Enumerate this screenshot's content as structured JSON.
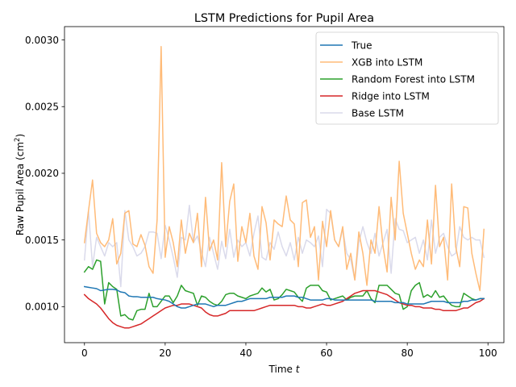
{
  "chart_data": {
    "type": "line",
    "title": "LSTM Predictions for Pupil Area",
    "xlabel": "Time ",
    "xlabel_var": "t",
    "ylabel": "Raw Pupil Area (cm",
    "ylabel_sup": "2",
    "ylabel_close": ")",
    "xlim": [
      -4.95,
      103.95
    ],
    "ylim": [
      0.00073,
      0.0031
    ],
    "x_ticks": [
      0,
      20,
      40,
      60,
      80,
      100
    ],
    "x_tick_labels": [
      "0",
      "20",
      "40",
      "60",
      "80",
      "100"
    ],
    "y_ticks": [
      0.001,
      0.0015,
      0.002,
      0.0025,
      0.003
    ],
    "y_tick_labels": [
      "0.0010",
      "0.0015",
      "0.0020",
      "0.0025",
      "0.0030"
    ],
    "grid": false,
    "legend_position": "upper-right",
    "x": [
      0,
      1,
      2,
      3,
      4,
      5,
      6,
      7,
      8,
      9,
      10,
      11,
      12,
      13,
      14,
      15,
      16,
      17,
      18,
      19,
      20,
      21,
      22,
      23,
      24,
      25,
      26,
      27,
      28,
      29,
      30,
      31,
      32,
      33,
      34,
      35,
      36,
      37,
      38,
      39,
      40,
      41,
      42,
      43,
      44,
      45,
      46,
      47,
      48,
      49,
      50,
      51,
      52,
      53,
      54,
      55,
      56,
      57,
      58,
      59,
      60,
      61,
      62,
      63,
      64,
      65,
      66,
      67,
      68,
      69,
      70,
      71,
      72,
      73,
      74,
      75,
      76,
      77,
      78,
      79,
      80,
      81,
      82,
      83,
      84,
      85,
      86,
      87,
      88,
      89,
      90,
      91,
      92,
      93,
      94,
      95,
      96,
      97,
      98,
      99
    ],
    "series": [
      {
        "name": "True",
        "color": "#1f77b4",
        "values": [
          0.00115,
          0.001145,
          0.00114,
          0.001135,
          0.00112,
          0.001125,
          0.00113,
          0.00113,
          0.001125,
          0.00111,
          0.001105,
          0.00108,
          0.001075,
          0.001075,
          0.00107,
          0.00107,
          0.00107,
          0.00107,
          0.00106,
          0.001055,
          0.00105,
          0.00104,
          0.00102,
          0.001,
          0.00099,
          0.00099,
          0.001,
          0.00101,
          0.00102,
          0.00102,
          0.00102,
          0.00101,
          0.001,
          0.00101,
          0.00101,
          0.00101,
          0.00102,
          0.00103,
          0.00104,
          0.00104,
          0.00105,
          0.00106,
          0.00106,
          0.00106,
          0.00106,
          0.00106,
          0.00107,
          0.00107,
          0.00107,
          0.00107,
          0.00108,
          0.00108,
          0.00108,
          0.00107,
          0.00107,
          0.00106,
          0.00105,
          0.00105,
          0.00105,
          0.00105,
          0.00106,
          0.00106,
          0.00105,
          0.00105,
          0.00105,
          0.00105,
          0.00105,
          0.00105,
          0.00105,
          0.00105,
          0.00105,
          0.00105,
          0.00104,
          0.00104,
          0.00104,
          0.00104,
          0.00104,
          0.00103,
          0.00103,
          0.00103,
          0.00102,
          0.00102,
          0.00102,
          0.00102,
          0.00102,
          0.00103,
          0.00104,
          0.00104,
          0.00104,
          0.00104,
          0.00103,
          0.00103,
          0.00103,
          0.00103,
          0.00104,
          0.00104,
          0.00105,
          0.00105,
          0.00106,
          0.00106
        ]
      },
      {
        "name": "XGB into LSTM",
        "color": "#ffbb78",
        "values": [
          0.00148,
          0.00172,
          0.00195,
          0.00155,
          0.00148,
          0.00145,
          0.0015,
          0.00166,
          0.00132,
          0.0014,
          0.0017,
          0.00172,
          0.00147,
          0.00145,
          0.00154,
          0.00146,
          0.0013,
          0.00125,
          0.00165,
          0.00295,
          0.00137,
          0.0016,
          0.00148,
          0.0013,
          0.00165,
          0.0014,
          0.00155,
          0.00148,
          0.0017,
          0.0013,
          0.00182,
          0.00142,
          0.0015,
          0.00135,
          0.00208,
          0.00145,
          0.00179,
          0.00192,
          0.00134,
          0.0016,
          0.00148,
          0.0017,
          0.00138,
          0.00128,
          0.00175,
          0.00163,
          0.00135,
          0.00165,
          0.00162,
          0.0016,
          0.00183,
          0.00165,
          0.00162,
          0.0013,
          0.00178,
          0.0018,
          0.00152,
          0.0016,
          0.0012,
          0.00164,
          0.00145,
          0.00172,
          0.0015,
          0.00145,
          0.0016,
          0.00128,
          0.0014,
          0.0012,
          0.00156,
          0.0014,
          0.00116,
          0.0015,
          0.0014,
          0.00175,
          0.00145,
          0.00126,
          0.00182,
          0.0015,
          0.00209,
          0.0017,
          0.00155,
          0.0014,
          0.00128,
          0.00135,
          0.0013,
          0.00165,
          0.00132,
          0.00191,
          0.00145,
          0.00152,
          0.0012,
          0.00192,
          0.00145,
          0.0013,
          0.00175,
          0.00174,
          0.0014,
          0.00125,
          0.00112,
          0.00158
        ]
      },
      {
        "name": "Random Forest into LSTM",
        "color": "#2ca02c",
        "values": [
          0.00126,
          0.0013,
          0.00128,
          0.00135,
          0.00134,
          0.00102,
          0.00118,
          0.00115,
          0.00113,
          0.00093,
          0.00094,
          0.00091,
          0.0009,
          0.00097,
          0.00098,
          0.00098,
          0.0011,
          0.001,
          0.001,
          0.00104,
          0.00108,
          0.00108,
          0.00103,
          0.00108,
          0.00116,
          0.00112,
          0.00111,
          0.0011,
          0.00101,
          0.00108,
          0.00107,
          0.00104,
          0.00102,
          0.00101,
          0.00104,
          0.00109,
          0.0011,
          0.0011,
          0.00108,
          0.00107,
          0.00106,
          0.00108,
          0.00109,
          0.0011,
          0.00114,
          0.00111,
          0.00113,
          0.00105,
          0.00106,
          0.00109,
          0.00113,
          0.00112,
          0.00111,
          0.00107,
          0.00104,
          0.00114,
          0.00116,
          0.00116,
          0.00116,
          0.00112,
          0.00111,
          0.00105,
          0.00106,
          0.00107,
          0.00108,
          0.00105,
          0.00107,
          0.00108,
          0.00108,
          0.00108,
          0.00112,
          0.00106,
          0.00103,
          0.00116,
          0.00116,
          0.00116,
          0.00113,
          0.0011,
          0.00109,
          0.00098,
          0.001,
          0.00112,
          0.00116,
          0.00118,
          0.00107,
          0.00109,
          0.00107,
          0.00112,
          0.00107,
          0.00108,
          0.00104,
          0.00101,
          0.001,
          0.001,
          0.0011,
          0.00108,
          0.00106,
          0.00105,
          0.00106,
          0.00106
        ]
      },
      {
        "name": "Ridge into LSTM",
        "color": "#d62728",
        "values": [
          0.00109,
          0.00106,
          0.00104,
          0.00102,
          0.00099,
          0.00095,
          0.00091,
          0.00088,
          0.00086,
          0.00085,
          0.00084,
          0.00084,
          0.00085,
          0.00086,
          0.00087,
          0.00089,
          0.00091,
          0.00093,
          0.00095,
          0.00097,
          0.00099,
          0.001,
          0.00101,
          0.00101,
          0.00102,
          0.00102,
          0.00102,
          0.00101,
          0.001,
          0.00099,
          0.00096,
          0.00094,
          0.00093,
          0.00093,
          0.00094,
          0.00095,
          0.00097,
          0.00097,
          0.00097,
          0.00097,
          0.00097,
          0.00097,
          0.00097,
          0.00098,
          0.00099,
          0.001,
          0.00101,
          0.00101,
          0.00101,
          0.00101,
          0.00101,
          0.00101,
          0.00101,
          0.001,
          0.001,
          0.00099,
          0.00099,
          0.001,
          0.00101,
          0.00102,
          0.00101,
          0.00101,
          0.00102,
          0.00103,
          0.00104,
          0.00106,
          0.00108,
          0.0011,
          0.00111,
          0.00112,
          0.00112,
          0.00112,
          0.00112,
          0.00111,
          0.0011,
          0.00109,
          0.00107,
          0.00105,
          0.00103,
          0.00102,
          0.00101,
          0.00101,
          0.001,
          0.001,
          0.00099,
          0.00099,
          0.00099,
          0.00098,
          0.00098,
          0.00097,
          0.00097,
          0.00097,
          0.00097,
          0.00098,
          0.00099,
          0.00099,
          0.00101,
          0.00103,
          0.00104,
          0.00106
        ]
      },
      {
        "name": "Base LSTM",
        "color": "#dadaeb",
        "values": [
          0.00135,
          0.00172,
          0.0013,
          0.00152,
          0.00145,
          0.00138,
          0.00148,
          0.00145,
          0.00148,
          0.00115,
          0.00172,
          0.0015,
          0.00145,
          0.00138,
          0.0014,
          0.00145,
          0.00156,
          0.00156,
          0.00155,
          0.00136,
          0.00161,
          0.0015,
          0.00137,
          0.00122,
          0.00152,
          0.0015,
          0.00176,
          0.00148,
          0.00153,
          0.00141,
          0.0013,
          0.00152,
          0.0014,
          0.00128,
          0.00149,
          0.00136,
          0.00158,
          0.00137,
          0.0015,
          0.00145,
          0.00148,
          0.00138,
          0.00155,
          0.00168,
          0.00137,
          0.00135,
          0.00148,
          0.00143,
          0.00156,
          0.00145,
          0.00138,
          0.00148,
          0.00135,
          0.00152,
          0.0014,
          0.0015,
          0.00148,
          0.00145,
          0.00153,
          0.0013,
          0.00173,
          0.0017,
          0.0015,
          0.00145,
          0.00158,
          0.0014,
          0.00135,
          0.0012,
          0.00148,
          0.0016,
          0.00148,
          0.0014,
          0.00155,
          0.00138,
          0.00148,
          0.00158,
          0.00125,
          0.00166,
          0.00158,
          0.00157,
          0.00148,
          0.0015,
          0.00152,
          0.0014,
          0.0015,
          0.00135,
          0.00165,
          0.0014,
          0.00152,
          0.00155,
          0.00145,
          0.00138,
          0.0014,
          0.0016,
          0.00152,
          0.0015,
          0.00152,
          0.0015,
          0.0015,
          0.00137
        ]
      }
    ]
  }
}
